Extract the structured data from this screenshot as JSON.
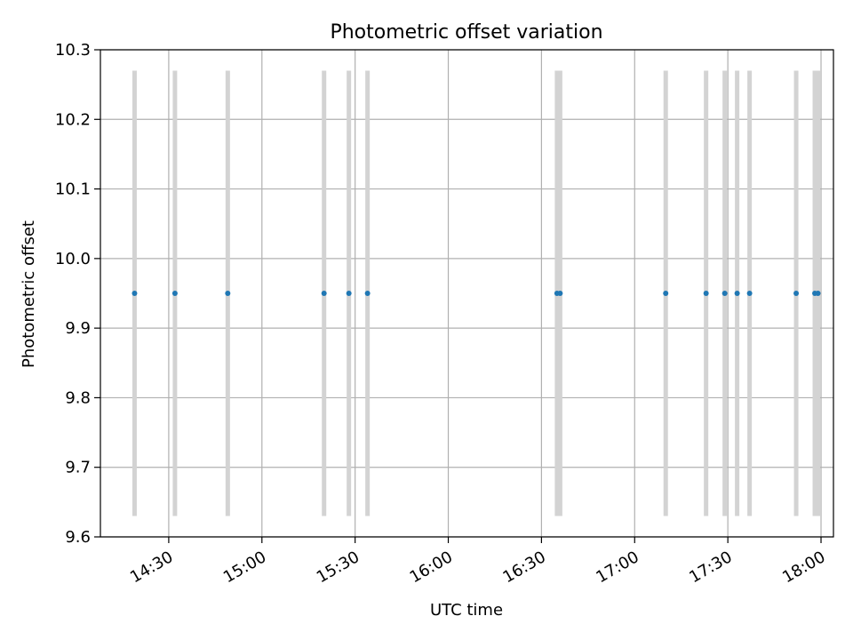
{
  "chart_data": {
    "type": "scatter",
    "title": "Photometric offset variation",
    "xlabel": "UTC time",
    "ylabel": "Photometric offset",
    "xlim": [
      "14:08",
      "18:04"
    ],
    "ylim": [
      9.6,
      10.3
    ],
    "x_ticks": [
      "14:30",
      "15:00",
      "15:30",
      "16:00",
      "16:30",
      "17:00",
      "17:30",
      "18:00"
    ],
    "y_ticks": [
      9.6,
      9.7,
      9.8,
      9.9,
      10.0,
      10.1,
      10.2,
      10.3
    ],
    "grid": true,
    "point_color": "#1f77b4",
    "errorbar_color": "#d3d3d3",
    "points": [
      {
        "x": "14:19",
        "y": 9.95,
        "yerr": 0.32
      },
      {
        "x": "14:32",
        "y": 9.95,
        "yerr": 0.32
      },
      {
        "x": "14:49",
        "y": 9.95,
        "yerr": 0.32
      },
      {
        "x": "15:20",
        "y": 9.95,
        "yerr": 0.32
      },
      {
        "x": "15:28",
        "y": 9.95,
        "yerr": 0.32
      },
      {
        "x": "15:34",
        "y": 9.95,
        "yerr": 0.32
      },
      {
        "x": "16:35",
        "y": 9.95,
        "yerr": 0.32
      },
      {
        "x": "16:36",
        "y": 9.95,
        "yerr": 0.32
      },
      {
        "x": "17:10",
        "y": 9.95,
        "yerr": 0.32
      },
      {
        "x": "17:23",
        "y": 9.95,
        "yerr": 0.32
      },
      {
        "x": "17:29",
        "y": 9.95,
        "yerr": 0.32
      },
      {
        "x": "17:33",
        "y": 9.95,
        "yerr": 0.32
      },
      {
        "x": "17:37",
        "y": 9.95,
        "yerr": 0.32
      },
      {
        "x": "17:52",
        "y": 9.95,
        "yerr": 0.32
      },
      {
        "x": "17:58",
        "y": 9.95,
        "yerr": 0.32
      },
      {
        "x": "17:59",
        "y": 9.95,
        "yerr": 0.32
      }
    ]
  }
}
